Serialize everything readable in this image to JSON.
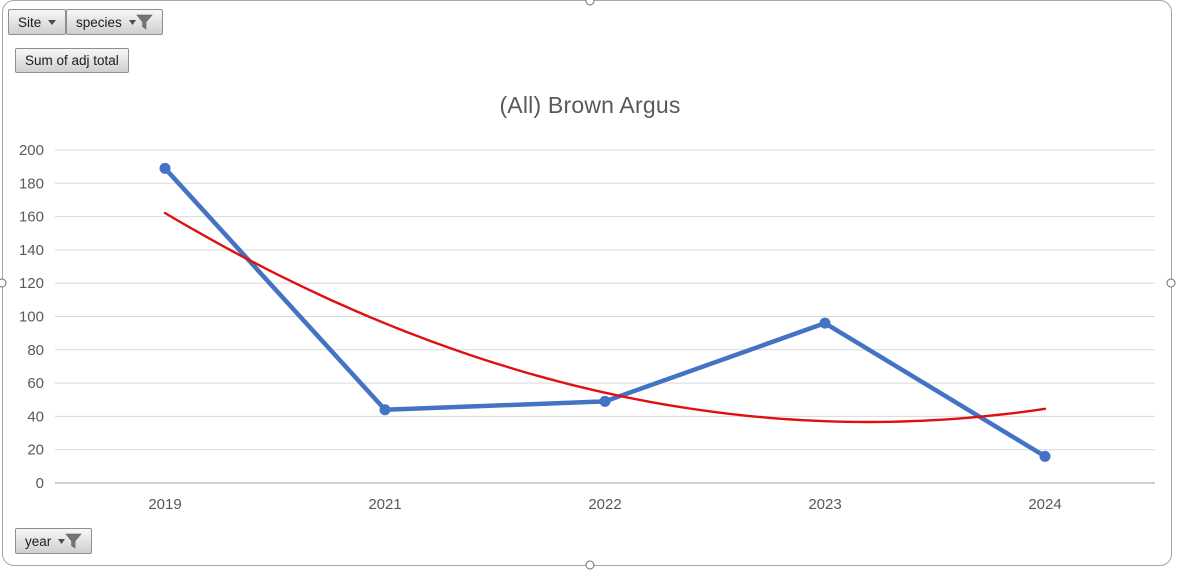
{
  "colors": {
    "series_blue": "#4472C4",
    "trendline_red": "#e01010",
    "gridline": "#d9d9d9",
    "axis_line": "#bfbfbf",
    "tick_text": "#595959",
    "title_text": "#595959",
    "funnel_icon": "#757575"
  },
  "buttons": {
    "site": {
      "label": "Site",
      "filtered": false
    },
    "species": {
      "label": "species",
      "filtered": true
    },
    "value": {
      "label": "Sum of adj total"
    },
    "year": {
      "label": "year",
      "filtered": true
    }
  },
  "chart_data": {
    "type": "line",
    "title": "(All) Brown Argus",
    "categories": [
      "2019",
      "2021",
      "2022",
      "2023",
      "2024"
    ],
    "series": [
      {
        "name": "Sum of adj total",
        "values": [
          189,
          44,
          49,
          96,
          16
        ],
        "color": "#4472C4",
        "marker": "circle"
      }
    ],
    "trendline": {
      "kind": "polynomial",
      "order": 2,
      "color": "#e01010",
      "coefficients": [
        12.286,
        -103.114,
        252.997
      ],
      "values_at_categories": [
        162,
        96,
        54,
        37,
        45
      ]
    },
    "xlabel": "",
    "ylabel": "",
    "ylim": [
      0,
      200
    ],
    "yticks": [
      0,
      20,
      40,
      60,
      80,
      100,
      120,
      140,
      160,
      180,
      200
    ],
    "grid": true,
    "legend": "none"
  }
}
